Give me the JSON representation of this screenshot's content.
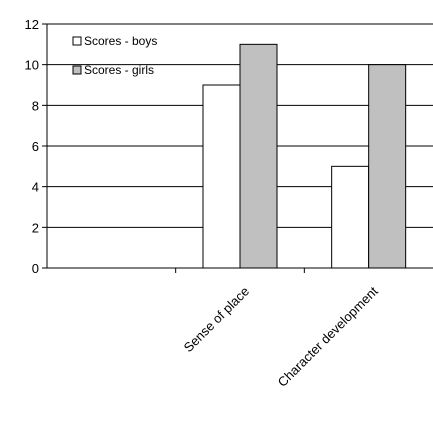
{
  "chart_data": {
    "type": "bar",
    "categories": [
      "",
      "Sense of place",
      "Character development"
    ],
    "series": [
      {
        "name": "Scores - boys",
        "values": [
          0,
          9,
          5
        ],
        "color": "#ffffff"
      },
      {
        "name": "Scores - girls",
        "values": [
          0,
          11,
          10
        ],
        "color": "#c0c0c0"
      }
    ],
    "title": "",
    "xlabel": "",
    "ylabel": "",
    "ylim": [
      0,
      12
    ],
    "yticks": [
      0,
      2,
      4,
      6,
      8,
      10,
      12
    ],
    "grid": true,
    "legend_position": "top-left"
  }
}
